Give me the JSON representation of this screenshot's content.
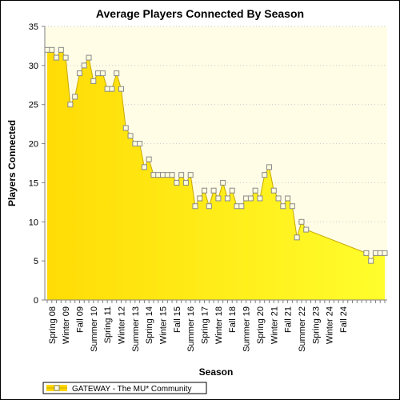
{
  "chart_data": {
    "type": "area",
    "title": "Average Players Connected By Season",
    "xlabel": "Season",
    "ylabel": "Players Connected",
    "ylim": [
      0,
      35
    ],
    "yticks": [
      0,
      5,
      10,
      15,
      20,
      25,
      30,
      35
    ],
    "grid": true,
    "legend_position": "bottom-left",
    "colors": {
      "fill_top": "#ffd700",
      "fill_bottom": "#ffff2e",
      "line": "#c8a800",
      "marker": "#fffde0",
      "plot_bg": "#fffde6"
    },
    "x_tick_labels": [
      "Spring 08",
      "Winter 09",
      "Fall 09",
      "Summer 10",
      "Spring 11",
      "Winter 12",
      "Summer 13",
      "Spring 14",
      "Winter 15",
      "Fall 15",
      "Summer 16",
      "Spring 17",
      "Winter 18",
      "Fall 18",
      "Summer 19",
      "Spring 20",
      "Winter 21",
      "Fall 21",
      "Summer 22",
      "Spring 23",
      "Winter 24",
      "Fall 24"
    ],
    "series": [
      {
        "name": "GATEWAY - The MU* Community",
        "values": [
          32,
          32,
          31,
          32,
          31,
          25,
          26,
          29,
          30,
          31,
          28,
          29,
          29,
          27,
          27,
          29,
          27,
          22,
          21,
          20,
          20,
          17,
          18,
          16,
          16,
          16,
          16,
          16,
          15,
          16,
          15,
          16,
          12,
          13,
          14,
          12,
          14,
          13,
          15,
          13,
          14,
          12,
          12,
          13,
          13,
          14,
          13,
          16,
          17,
          14,
          13,
          12,
          13,
          12,
          8,
          10,
          9,
          null,
          null,
          null,
          null,
          null,
          null,
          null,
          null,
          null,
          null,
          null,
          null,
          6,
          5,
          6,
          6,
          6
        ]
      }
    ]
  }
}
